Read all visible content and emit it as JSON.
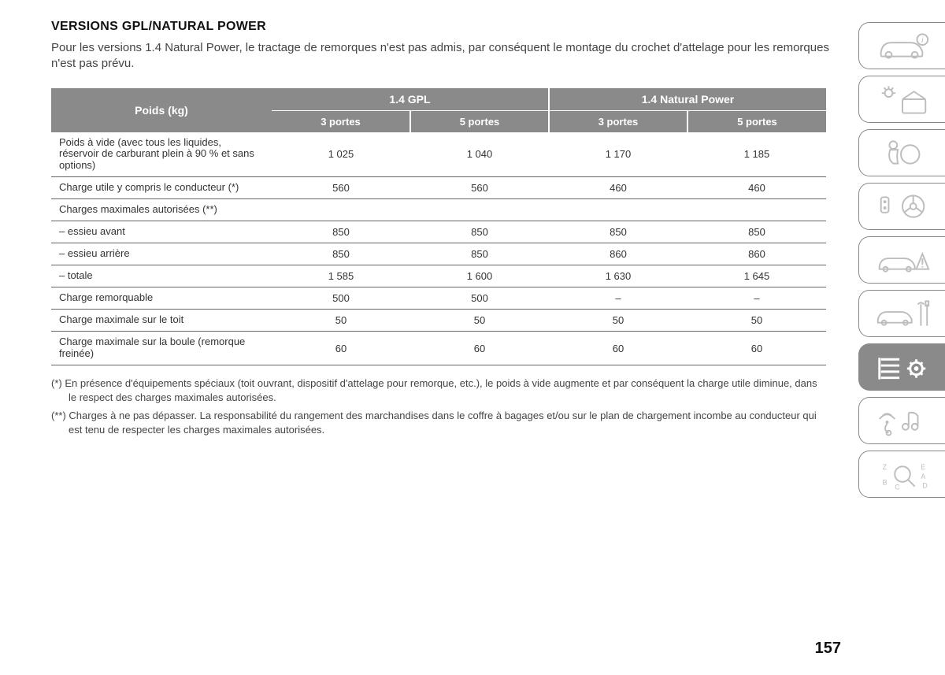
{
  "section_title": "VERSIONS GPL/NATURAL POWER",
  "intro_text": "Pour les versions 1.4 Natural Power, le tractage de remorques n'est pas admis, par conséquent le montage du crochet d'attelage pour les remorques n'est pas prévu.",
  "table": {
    "row_header": "Poids (kg)",
    "group_headers": [
      "1.4 GPL",
      "1.4 Natural Power"
    ],
    "sub_headers": [
      "3 portes",
      "5 portes",
      "3 portes",
      "5 portes"
    ],
    "rows": [
      {
        "label": "Poids à vide (avec tous les liquides, réservoir de carburant plein à 90 % et sans options)",
        "values": [
          "1 025",
          "1 040",
          "1 170",
          "1 185"
        ]
      },
      {
        "label": "Charge utile y compris le conducteur (*)",
        "values": [
          "560",
          "560",
          "460",
          "460"
        ]
      },
      {
        "label": "Charges maximales autorisées (**)",
        "values": [
          "",
          "",
          "",
          ""
        ],
        "section": true
      },
      {
        "label": "– essieu avant",
        "values": [
          "850",
          "850",
          "850",
          "850"
        ]
      },
      {
        "label": "– essieu arrière",
        "values": [
          "850",
          "850",
          "860",
          "860"
        ]
      },
      {
        "label": "– totale",
        "values": [
          "1 585",
          "1 600",
          "1 630",
          "1 645"
        ]
      },
      {
        "label": "Charge remorquable",
        "values": [
          "500",
          "500",
          "–",
          "–"
        ]
      },
      {
        "label": "Charge maximale sur le toit",
        "values": [
          "50",
          "50",
          "50",
          "50"
        ]
      },
      {
        "label": "Charge maximale sur la boule (remorque freinée)",
        "values": [
          "60",
          "60",
          "60",
          "60"
        ]
      }
    ]
  },
  "footnotes": [
    "(*) En présence d'équipements spéciaux (toit ouvrant, dispositif d'attelage pour remorque, etc.), le poids à vide augmente et par conséquent la charge utile diminue, dans le respect des charges maximales autorisées.",
    "(**) Charges à ne pas dépasser. La responsabilité du rangement des marchandises dans le coffre à bagages et/ou sur le plan de chargement incombe au conducteur qui est tenu de respecter les charges maximales autorisées."
  ],
  "page_number": "157",
  "sidebar_tabs": [
    {
      "name": "info-tab",
      "icon": "car-info",
      "active": false
    },
    {
      "name": "indicators-tab",
      "icon": "dashboard",
      "active": false
    },
    {
      "name": "safety-tab",
      "icon": "airbag",
      "active": false
    },
    {
      "name": "starting-tab",
      "icon": "key-wheel",
      "active": false
    },
    {
      "name": "emergency-tab",
      "icon": "warning-car",
      "active": false
    },
    {
      "name": "maintenance-tab",
      "icon": "car-wrench",
      "active": false
    },
    {
      "name": "specs-tab",
      "icon": "list-gear",
      "active": true
    },
    {
      "name": "multimedia-tab",
      "icon": "wifi-music",
      "active": false
    },
    {
      "name": "index-tab",
      "icon": "alpha-index",
      "active": false
    }
  ]
}
